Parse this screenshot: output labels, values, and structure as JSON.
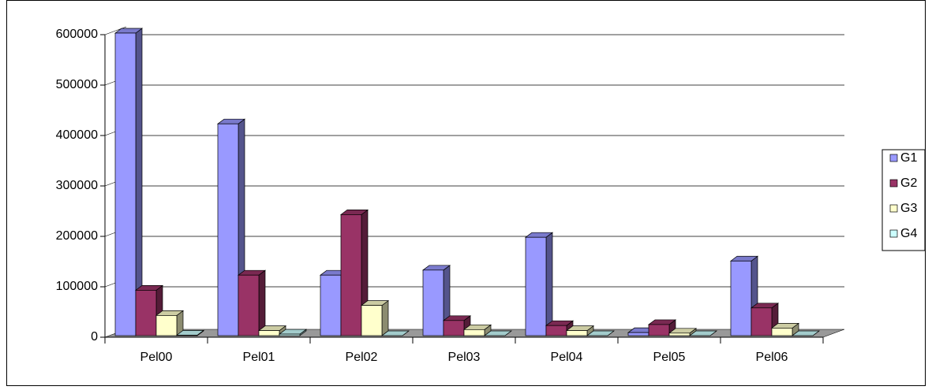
{
  "chart_data": {
    "type": "bar3d",
    "categories": [
      "Pel00",
      "Pel01",
      "Pel02",
      "Pel03",
      "Pel04",
      "Pel05",
      "Pel06"
    ],
    "series": [
      {
        "name": "G1",
        "color": "#9999ff",
        "values": [
          600000,
          420000,
          120000,
          130000,
          195000,
          6000,
          148000
        ]
      },
      {
        "name": "G2",
        "color": "#993366",
        "values": [
          90000,
          120000,
          240000,
          30000,
          20000,
          22000,
          55000
        ]
      },
      {
        "name": "G3",
        "color": "#ffffcc",
        "values": [
          40000,
          10000,
          60000,
          12000,
          10000,
          5000,
          15000
        ]
      },
      {
        "name": "G4",
        "color": "#ccffff",
        "values": [
          1000,
          3000,
          0,
          0,
          0,
          0,
          0
        ]
      }
    ],
    "ylim": [
      0,
      600000
    ],
    "yticks": [
      0,
      100000,
      200000,
      300000,
      400000,
      500000,
      600000
    ],
    "grid": true,
    "legend": "right"
  }
}
